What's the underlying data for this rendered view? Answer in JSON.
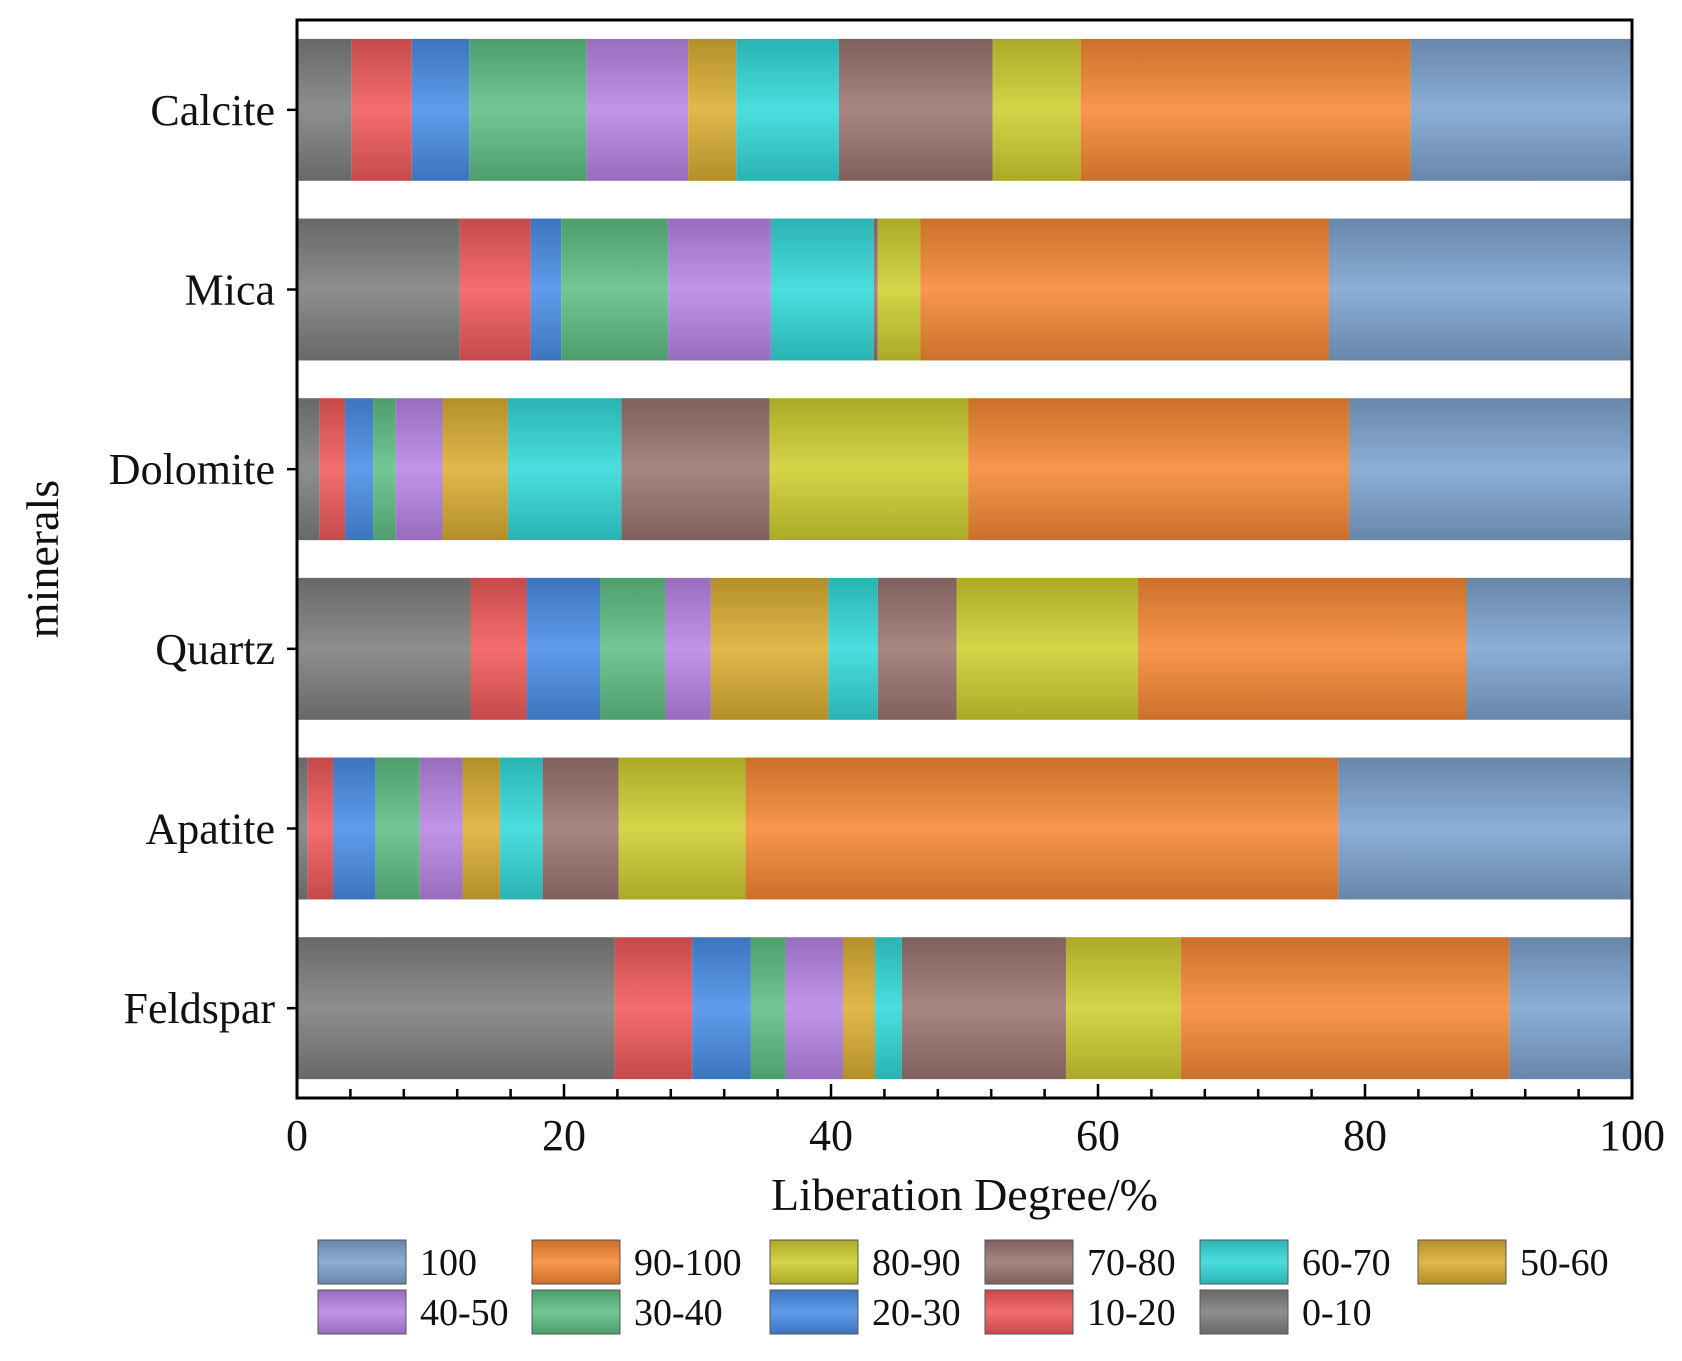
{
  "chart_data": {
    "type": "bar",
    "orientation": "horizontal",
    "stacked": true,
    "title": "",
    "xlabel": "Liberation Degree/%",
    "ylabel": "minerals",
    "xlim": [
      0,
      100
    ],
    "xticks": [
      0,
      20,
      40,
      60,
      80,
      100
    ],
    "grid": false,
    "legend_position": "bottom",
    "categories": [
      "Calcite",
      "Mica",
      "Dolomite",
      "Quartz",
      "Apatite",
      "Feldspar"
    ],
    "series": [
      {
        "name": "0-10",
        "color": "#7f7f7f",
        "values": [
          4.1,
          12.2,
          1.7,
          13.0,
          0.8,
          23.8
        ]
      },
      {
        "name": "10-20",
        "color": "#f25a5a",
        "values": [
          4.5,
          5.3,
          1.9,
          4.2,
          1.9,
          5.8
        ]
      },
      {
        "name": "20-30",
        "color": "#4a8ee8",
        "values": [
          4.3,
          2.3,
          2.1,
          5.5,
          3.2,
          4.4
        ]
      },
      {
        "name": "30-40",
        "color": "#5fbf85",
        "values": [
          8.8,
          8.0,
          1.7,
          4.9,
          3.3,
          2.6
        ]
      },
      {
        "name": "40-50",
        "color": "#b985e6",
        "values": [
          7.6,
          7.7,
          3.5,
          3.4,
          3.2,
          4.3
        ]
      },
      {
        "name": "50-60",
        "color": "#dcae32",
        "values": [
          3.6,
          0.0,
          4.9,
          8.8,
          2.8,
          2.4
        ]
      },
      {
        "name": "60-70",
        "color": "#33dada",
        "values": [
          7.7,
          7.7,
          8.5,
          3.7,
          3.2,
          2.0
        ]
      },
      {
        "name": "70-80",
        "color": "#9c7571",
        "values": [
          11.5,
          0.3,
          11.1,
          5.9,
          5.7,
          12.3
        ]
      },
      {
        "name": "80-90",
        "color": "#cfcf30",
        "values": [
          6.6,
          3.2,
          14.9,
          13.6,
          9.5,
          8.6
        ]
      },
      {
        "name": "90-100",
        "color": "#f78834",
        "values": [
          24.7,
          30.6,
          28.5,
          24.6,
          44.4,
          24.6
        ]
      },
      {
        "name": "100",
        "color": "#7ea4cf",
        "values": [
          16.6,
          22.7,
          21.2,
          12.4,
          22.0,
          9.2
        ]
      }
    ],
    "legend_order": [
      "100",
      "90-100",
      "80-90",
      "70-80",
      "60-70",
      "50-60",
      "40-50",
      "30-40",
      "20-30",
      "10-20",
      "0-10"
    ]
  }
}
